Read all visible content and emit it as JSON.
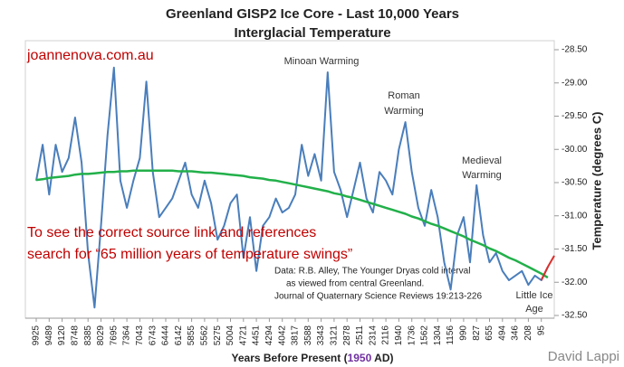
{
  "chart_data": {
    "type": "line",
    "title": "Greenland GISP2 Ice Core - Last 10,000 Years",
    "subtitle": "Interglacial Temperature",
    "xlabel_parts": [
      "Years Before Present (",
      "1950",
      " AD)"
    ],
    "ylabel": "Temperature (degrees C)",
    "watermark": "joannenova.com.au",
    "notice": [
      "To see the correct source link and references",
      "search for “65 million years of temperature swings”"
    ],
    "annotations": [
      "Minoan Warming",
      "Roman",
      "Warming",
      "Medieval",
      "Warming",
      "Little Ice",
      "Age"
    ],
    "source": [
      "Data: R.B. Alley,  The Younger Dryas cold interval",
      "as viewed from central Greenland.",
      "Journal of Quaternary  Science Reviews 19:213-226"
    ],
    "credit": "David Lappi",
    "categories": [
      9925,
      null,
      9489,
      null,
      9120,
      null,
      8748,
      null,
      8385,
      null,
      8029,
      null,
      7695,
      null,
      7364,
      null,
      7043,
      null,
      6743,
      null,
      6444,
      null,
      6142,
      null,
      5855,
      null,
      5562,
      null,
      5275,
      null,
      5004,
      null,
      4721,
      null,
      4451,
      null,
      4294,
      null,
      4042,
      null,
      3817,
      null,
      3588,
      null,
      3343,
      null,
      3121,
      null,
      2878,
      null,
      2511,
      null,
      2314,
      null,
      2116,
      null,
      1940,
      null,
      1736,
      null,
      1562,
      null,
      1304,
      null,
      1156,
      null,
      990,
      null,
      827,
      null,
      655,
      null,
      494,
      null,
      346,
      null,
      208,
      null,
      95,
      null,
      null
    ],
    "ylim": [
      -32.5,
      -28.5
    ],
    "yticks": [
      {
        "value": -28.5,
        "label": "-28.50"
      },
      {
        "value": -29,
        "label": "-29.00"
      },
      {
        "value": -29.5,
        "label": "-29.50"
      },
      {
        "value": -30,
        "label": "-30.00"
      },
      {
        "value": -30.5,
        "label": "-30.50"
      },
      {
        "value": -31,
        "label": "-31.00"
      },
      {
        "value": -31.5,
        "label": "-31.50"
      },
      {
        "value": -32,
        "label": "-32.00"
      },
      {
        "value": -32.5,
        "label": "-32.50"
      }
    ],
    "series": [
      {
        "color": "#4a7ebb",
        "values": [
          -30.47,
          -29.93,
          -30.68,
          -29.93,
          -30.34,
          -30.13,
          -29.52,
          -30.2,
          -31.56,
          -32.38,
          -31.15,
          -29.79,
          -28.77,
          -30.47,
          -30.88,
          -30.47,
          -30.13,
          -28.98,
          -30.34,
          -31.02,
          -30.88,
          -30.74,
          -30.47,
          -30.2,
          -30.68,
          -30.88,
          -30.47,
          -30.81,
          -31.36,
          -31.15,
          -30.81,
          -30.68,
          -31.63,
          -31.02,
          -31.83,
          -31.15,
          -31.02,
          -30.74,
          -30.95,
          -30.88,
          -30.68,
          -29.93,
          -30.4,
          -30.07,
          -30.47,
          -28.84,
          -30.34,
          -30.61,
          -31.02,
          -30.61,
          -30.2,
          -30.74,
          -30.95,
          -30.34,
          -30.47,
          -30.68,
          -30.0,
          -29.59,
          -30.34,
          -30.88,
          -31.15,
          -30.61,
          -31.02,
          -31.7,
          -32.11,
          -31.29,
          -31.02,
          -31.7,
          -30.54,
          -31.29,
          -31.7,
          -31.56,
          -31.83,
          -31.97,
          -31.9,
          -31.83,
          -32.04,
          -31.9,
          -31.97,
          -31.77,
          null
        ]
      },
      {
        "color": "#22b04a",
        "values": [
          -30.46,
          -30.45,
          -30.43,
          -30.42,
          -30.41,
          -30.4,
          -30.38,
          -30.37,
          -30.37,
          -30.36,
          -30.35,
          -30.34,
          -30.34,
          -30.33,
          -30.33,
          -30.32,
          -30.32,
          -30.32,
          -30.32,
          -30.32,
          -30.32,
          -30.32,
          -30.33,
          -30.33,
          -30.33,
          -30.34,
          -30.35,
          -30.35,
          -30.36,
          -30.37,
          -30.38,
          -30.39,
          -30.4,
          -30.42,
          -30.43,
          -30.44,
          -30.46,
          -30.47,
          -30.49,
          -30.51,
          -30.53,
          -30.55,
          -30.57,
          -30.59,
          -30.61,
          -30.63,
          -30.66,
          -30.68,
          -30.71,
          -30.73,
          -30.76,
          -30.79,
          -30.82,
          -30.85,
          -30.88,
          -30.91,
          -30.94,
          -30.97,
          -31.01,
          -31.04,
          -31.08,
          -31.12,
          -31.15,
          -31.19,
          -31.23,
          -31.27,
          -31.31,
          -31.36,
          -31.4,
          -31.44,
          -31.49,
          -31.53,
          -31.58,
          -31.63,
          -31.67,
          -31.72,
          -31.77,
          -31.82,
          -31.87,
          -31.93,
          null
        ]
      },
      {
        "color": "#d9302c",
        "values": [
          null,
          null,
          null,
          null,
          null,
          null,
          null,
          null,
          null,
          null,
          null,
          null,
          null,
          null,
          null,
          null,
          null,
          null,
          null,
          null,
          null,
          null,
          null,
          null,
          null,
          null,
          null,
          null,
          null,
          null,
          null,
          null,
          null,
          null,
          null,
          null,
          null,
          null,
          null,
          null,
          null,
          null,
          null,
          null,
          null,
          null,
          null,
          null,
          null,
          null,
          null,
          null,
          null,
          null,
          null,
          null,
          null,
          null,
          null,
          null,
          null,
          null,
          null,
          null,
          null,
          null,
          null,
          null,
          null,
          null,
          null,
          null,
          null,
          null,
          null,
          null,
          null,
          null,
          -31.97,
          -31.77,
          -31.6
        ]
      }
    ]
  }
}
